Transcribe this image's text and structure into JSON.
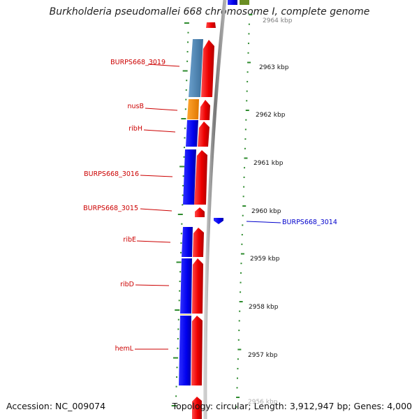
{
  "title": "Burkholderia pseudomallei 668 chromosome I, complete genome",
  "footer": {
    "accession": "Accession: NC_009074",
    "topology": "Topology: circular; Length: 3,912,947 bp; Genes: 4,000"
  },
  "colors": {
    "gene_label": "#cc0000",
    "gene_label_right": "#0000cc",
    "forward_arrow": "#ff0000",
    "reverse_blue": "#0000ee",
    "steel_blue": "#4682b4",
    "orange": "#ff8c00",
    "olive_green": "#6b8e23",
    "tick_green": "#2e8b2e",
    "backbone": "#888888"
  },
  "scale_labels": [
    "2964 kbp",
    "2963 kbp",
    "2962 kbp",
    "2961 kbp",
    "2960 kbp",
    "2959 kbp",
    "2958 kbp",
    "2957 kbp",
    "2956 kbp"
  ],
  "gene_labels_left": [
    "BURPS668_3019",
    "nusB",
    "ribH",
    "BURPS668_3016",
    "BURPS668_3015",
    "ribE",
    "ribD",
    "hemL"
  ],
  "gene_labels_right": [
    "BURPS668_3014"
  ],
  "features": [
    {
      "name": "BURPS668_3019",
      "color": "steel_blue"
    },
    {
      "name": "nusB",
      "color": "orange"
    },
    {
      "name": "ribH",
      "color": "reverse_blue"
    },
    {
      "name": "BURPS668_3016",
      "color": "reverse_blue"
    },
    {
      "name": "BURPS668_3015",
      "color": "forward_arrow"
    },
    {
      "name": "ribE",
      "color": "reverse_blue"
    },
    {
      "name": "ribD",
      "color": "reverse_blue"
    },
    {
      "name": "hemL",
      "color": "reverse_blue"
    },
    {
      "name": "BURPS668_3014",
      "color": "reverse_blue"
    }
  ]
}
